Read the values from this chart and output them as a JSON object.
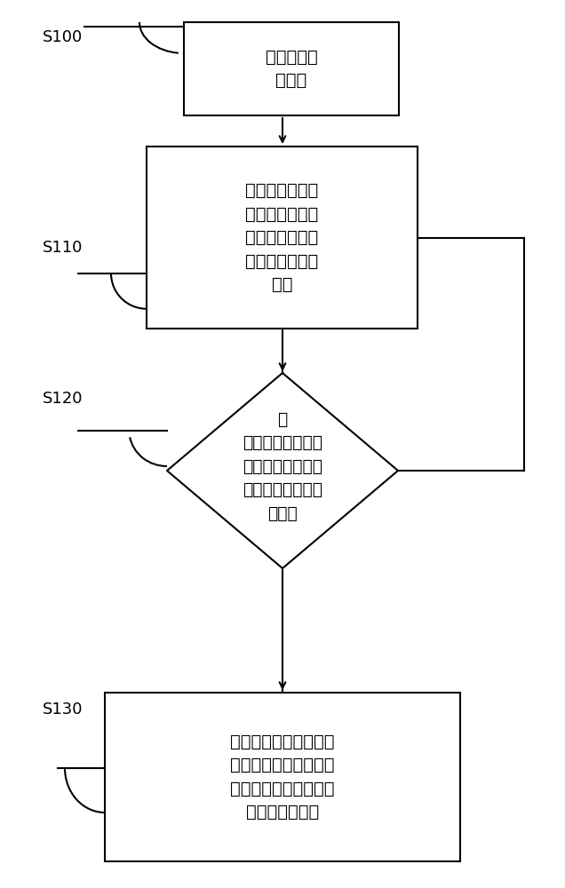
{
  "background_color": "#ffffff",
  "box1_text": "风扇摇头组\n件通电",
  "box2_text": "风扇摇头组件开\n始旋转，光发射\n部件被控制部件\n开通并开始发射\n光线",
  "diamond_text": "三\n个光接收部件中的\n任意光接收部件检\n测光线以生成光检\n测信号",
  "box3_text": "控制部件根据光检测信\n号确定接收到光线的光\n接收部件以确定风扇摇\n头组件所在位置",
  "label_s100": "S100",
  "label_s110": "S110",
  "label_s120": "S120",
  "label_s130": "S130",
  "box_color": "#ffffff",
  "box_edge_color": "#000000",
  "text_color": "#000000",
  "arrow_color": "#000000",
  "line_width": 1.5,
  "font_size": 14.0,
  "label_font_size": 13.0
}
